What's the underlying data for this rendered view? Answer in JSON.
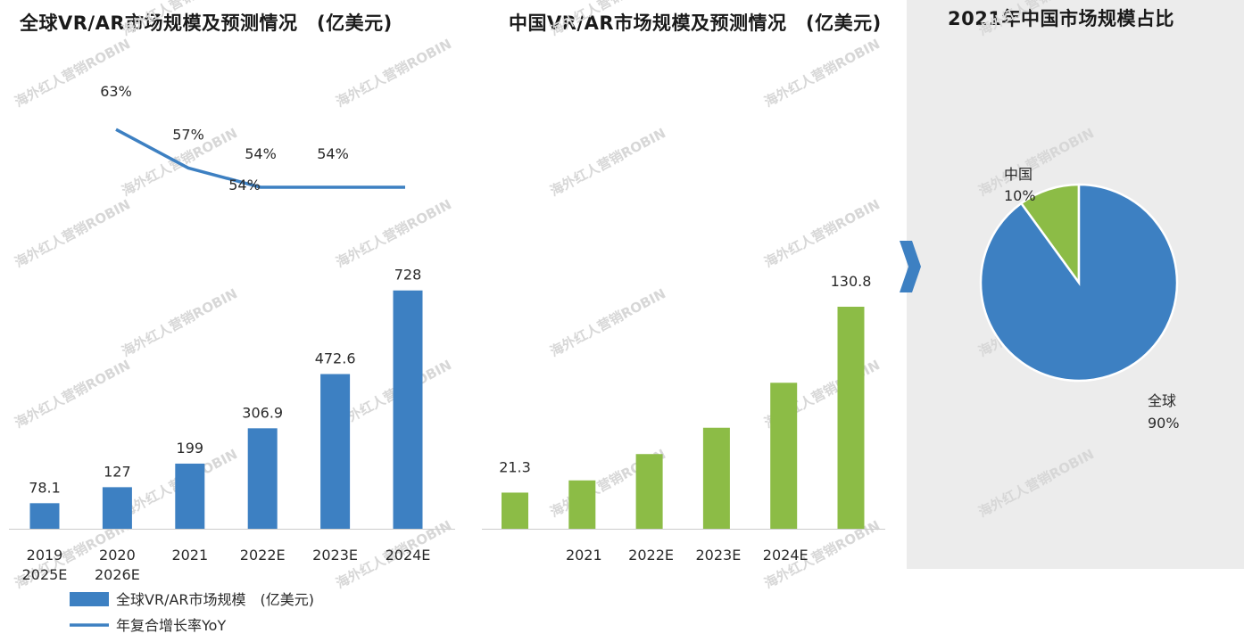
{
  "titles": {
    "global": "全球VR/AR市场规模及预测情况　(亿美元)",
    "china": "中国VR/AR市场规模及预测情况　(亿美元)",
    "pie": "2021年中国市场规模占比"
  },
  "watermark": "海外红人营销ROBIN",
  "colors": {
    "global_bar": "#3d80c2",
    "china_bar": "#8cbc46",
    "line": "#3d80c2",
    "arrow": "#3d80c2",
    "pie_bg": "#ececec"
  },
  "chart_data": [
    {
      "type": "bar",
      "name": "global",
      "title": "全球VR/AR市场规模及预测情况　(亿美元)",
      "categories": [
        "2019",
        "2020",
        "2021",
        "2022E",
        "2023E",
        "2024E"
      ],
      "extra_tick_labels": [
        "2025E",
        "2026E"
      ],
      "series": [
        {
          "name": "全球VR/AR市场规模　(亿美元)",
          "values": [
            78.1,
            127,
            199,
            306.9,
            472.6,
            728
          ]
        }
      ],
      "line_series": {
        "name": "年复合增长率YoY",
        "points": [
          {
            "category": "2020",
            "value": 63,
            "label": "63%"
          },
          {
            "category": "2021",
            "value": 57,
            "label": "57%"
          },
          {
            "category": "2022E",
            "value": 54,
            "label": "54%"
          },
          {
            "category": "2023E",
            "value": 54,
            "label": "54%"
          },
          {
            "category": "2024E",
            "value": 54,
            "label": ""
          }
        ],
        "extra_label": "54%"
      },
      "legend": [
        "全球VR/AR市场规模　(亿美元)",
        "年复合增长率YoY"
      ],
      "ylim": [
        0,
        800
      ]
    },
    {
      "type": "bar",
      "name": "china",
      "title": "中国VR/AR市场规模及预测情况　(亿美元)",
      "categories": [
        "",
        "2021",
        "2022E",
        "2023E",
        "2024E",
        ""
      ],
      "series": [
        {
          "name": "中国VR/AR市场规模",
          "values": [
            21.3,
            28.5,
            44,
            59.5,
            86,
            130.8
          ],
          "labels": [
            "21.3",
            "",
            "",
            "",
            "",
            "130.8"
          ]
        }
      ],
      "ylim": [
        0,
        143
      ]
    },
    {
      "type": "pie",
      "name": "share",
      "title": "2021年中国市场规模占比",
      "slices": [
        {
          "name": "中国",
          "value": 10,
          "label": "10%",
          "color": "#8cbc46"
        },
        {
          "name": "全球",
          "value": 90,
          "label": "90%",
          "color": "#3d80c2"
        }
      ]
    }
  ]
}
